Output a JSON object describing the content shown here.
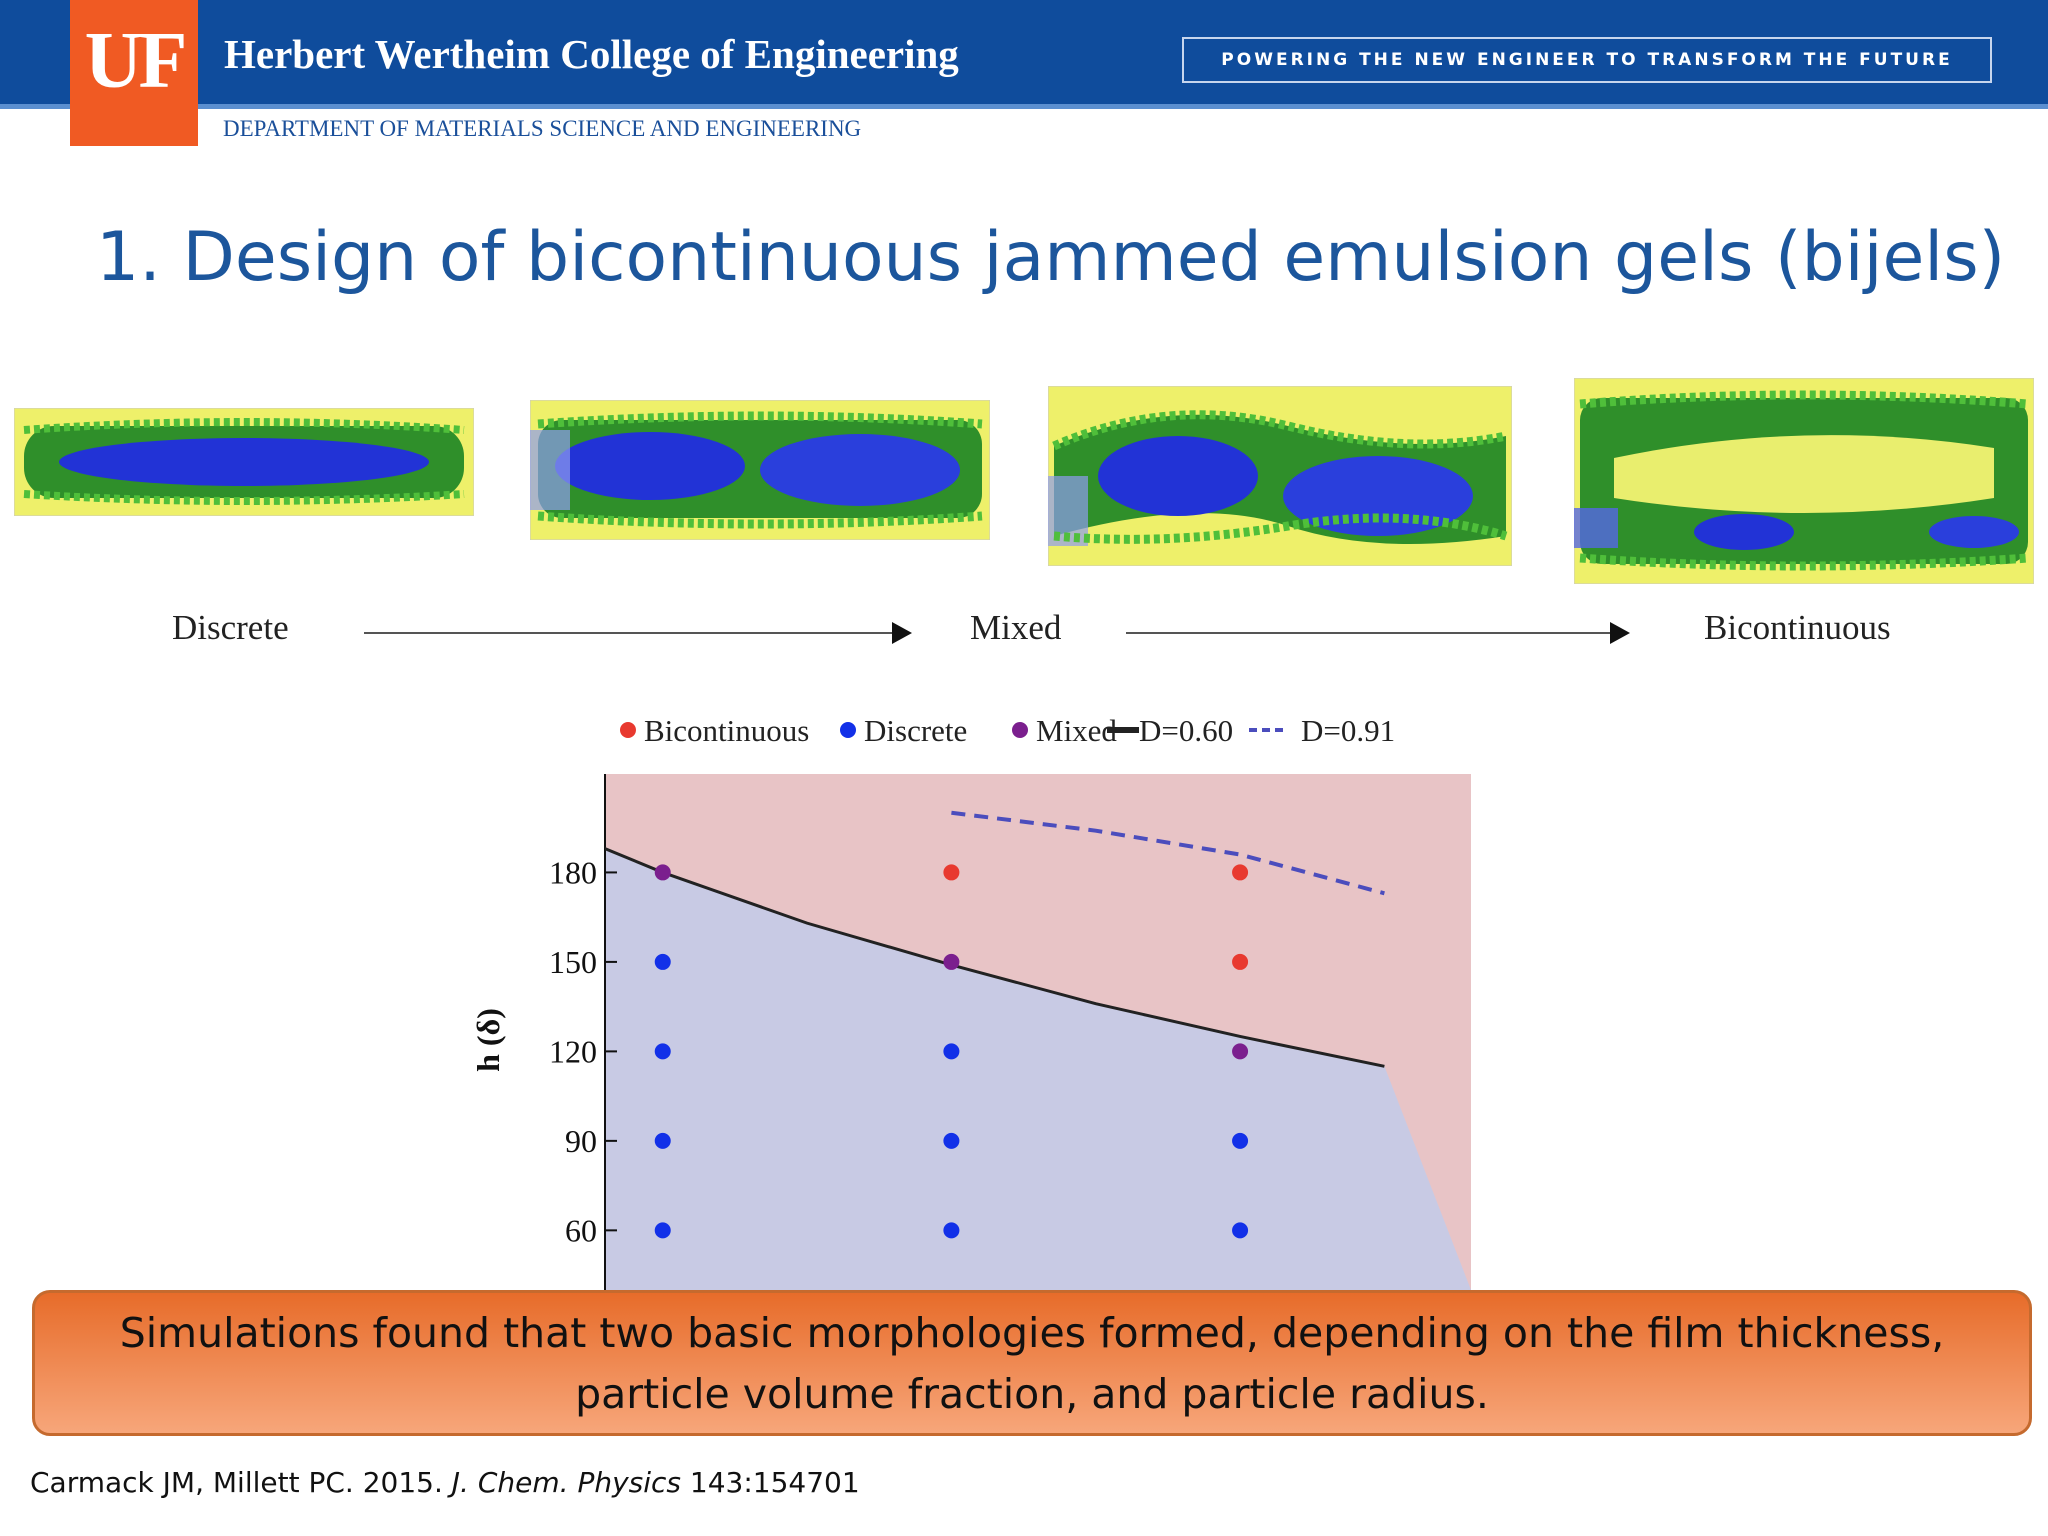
{
  "header": {
    "logo_text": "UF",
    "college": "Herbert Wertheim College of Engineering",
    "tagline": "POWERING THE NEW ENGINEER TO TRANSFORM THE FUTURE",
    "department": "DEPARTMENT OF MATERIALS SCIENCE AND ENGINEERING"
  },
  "slide": {
    "title": "1. Design of bicontinuous jammed emulsion gels (bijels)"
  },
  "morphology_sequence": {
    "labels": [
      "Discrete",
      "Mixed",
      "Bicontinuous"
    ]
  },
  "callout": {
    "line1": "Simulations found that two basic morphologies formed, depending on the film thickness,",
    "line2": "particle volume fraction, and particle radius."
  },
  "citation": {
    "authors": "Carmack JM, Millett PC. 2015.",
    "journal": "J. Chem. Physics",
    "ref": "143:154701"
  },
  "colors": {
    "header_blue": "#0f4c9c",
    "logo_orange": "#f05a23",
    "bicontinuous_point": "#e8392f",
    "discrete_point": "#1230e8",
    "mixed_point": "#7b1f8e",
    "bicontinuous_region": "#e8c4c6",
    "discrete_region": "#c8cae4",
    "boundary_solid": "#222222",
    "boundary_dashed": "#4b4dbd"
  },
  "chart_data": {
    "type": "scatter",
    "xlabel": "",
    "ylabel": "h (δ)",
    "ylim": [
      40,
      213
    ],
    "xlim": [
      0.8,
      3.8
    ],
    "yticks": [
      60,
      90,
      120,
      150,
      180
    ],
    "legend": [
      {
        "label": "Bicontinuous",
        "kind": "point",
        "color": "#e8392f"
      },
      {
        "label": "Discrete",
        "kind": "point",
        "color": "#1230e8"
      },
      {
        "label": "Mixed",
        "kind": "point",
        "color": "#7b1f8e"
      },
      {
        "label": "D=0.60",
        "kind": "solid-line",
        "color": "#222222"
      },
      {
        "label": "D=0.91",
        "kind": "dashed-line",
        "color": "#4b4dbd"
      }
    ],
    "series": [
      {
        "name": "Bicontinuous",
        "points": [
          [
            2,
            180
          ],
          [
            3,
            180
          ],
          [
            3,
            150
          ]
        ]
      },
      {
        "name": "Discrete",
        "points": [
          [
            1,
            150
          ],
          [
            1,
            120
          ],
          [
            1,
            90
          ],
          [
            1,
            60
          ],
          [
            2,
            120
          ],
          [
            2,
            90
          ],
          [
            2,
            60
          ],
          [
            3,
            90
          ],
          [
            3,
            60
          ]
        ]
      },
      {
        "name": "Mixed",
        "points": [
          [
            1,
            180
          ],
          [
            2,
            150
          ],
          [
            3,
            120
          ]
        ]
      }
    ],
    "boundaries": [
      {
        "name": "D=0.60",
        "style": "solid",
        "points": [
          [
            0.5,
            200
          ],
          [
            1,
            180
          ],
          [
            1.5,
            163
          ],
          [
            2,
            149
          ],
          [
            2.5,
            136
          ],
          [
            3,
            125
          ],
          [
            3.5,
            115
          ]
        ]
      },
      {
        "name": "D=0.91",
        "style": "dashed",
        "points": [
          [
            2.0,
            200
          ],
          [
            2.5,
            194
          ],
          [
            3.0,
            186
          ],
          [
            3.5,
            173
          ]
        ]
      }
    ]
  }
}
